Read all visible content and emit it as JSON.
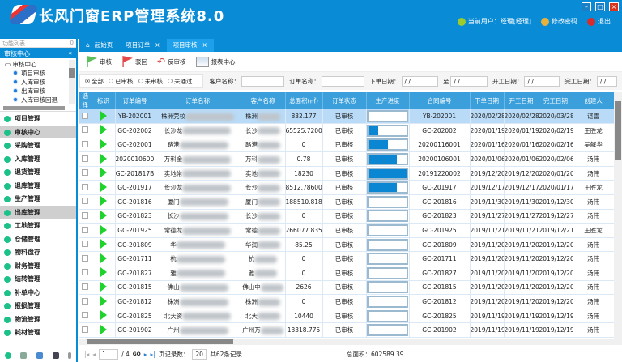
{
  "app": {
    "title": "长风门窗ERP管理系统8.0",
    "user": "当前用户：经理[经理]",
    "change_password": "修改密码",
    "logout": "退出"
  },
  "sidebar": {
    "header": "功能列表",
    "pin": "0",
    "section": "审核中心",
    "collapse": "«",
    "tree": {
      "root": "审核中心",
      "items": [
        "项目审核",
        "入库审核",
        "出库审核",
        "入库审核回退"
      ]
    },
    "menu": [
      {
        "label": "项目管理"
      },
      {
        "label": "审核中心",
        "selected": true
      },
      {
        "label": "采购管理"
      },
      {
        "label": "入库管理"
      },
      {
        "label": "退货管理"
      },
      {
        "label": "退库管理"
      },
      {
        "label": "生产管理"
      },
      {
        "label": "出库管理",
        "selected": true
      },
      {
        "label": "工地管理"
      },
      {
        "label": "仓储管理"
      },
      {
        "label": "物料盘存"
      },
      {
        "label": "财务管理"
      },
      {
        "label": "结转管理"
      },
      {
        "label": "补单中心"
      },
      {
        "label": "报损管理"
      },
      {
        "label": "物流管理"
      },
      {
        "label": "耗材管理"
      }
    ]
  },
  "tabs": [
    {
      "label": "起始页"
    },
    {
      "label": "项目订单",
      "close": "×"
    },
    {
      "label": "项目审核",
      "close": "×",
      "active": true
    }
  ],
  "toolbar": {
    "approve": "审核",
    "reject": "驳回",
    "unapprove": "反审核",
    "report": "报表中心"
  },
  "filters": {
    "radios": [
      {
        "label": "全部",
        "checked": true
      },
      {
        "label": "已审核"
      },
      {
        "label": "未审核"
      },
      {
        "label": "未通过"
      }
    ],
    "customer_label": "客户名称：",
    "order_label": "订单名称：",
    "order_date_label": "下单日期：",
    "to_label": "至",
    "start_label": "开工日期：",
    "finish_label": "完工日期：",
    "date_placeholder": " /  / "
  },
  "table": {
    "columns": [
      "选择",
      "标识",
      "订单编号",
      "订单名称",
      "客户名称",
      "总面积(㎡)",
      "订单状态",
      "生产进度",
      "合同编号",
      "下单日期",
      "开工日期",
      "完工日期",
      "创建人"
    ],
    "rows": [
      [
        "YB-202001",
        "株洲莞校",
        "株洲",
        "832.177",
        "已审核",
        0,
        "YB-202001",
        "2020/02/28",
        "2020/02/28",
        "2020/03/28",
        "谌雷"
      ],
      [
        "GC-202002",
        "长沙龙",
        "长沙",
        "65525.7200...",
        "已审核",
        25,
        "GC-202002",
        "2020/01/19",
        "2020/01/19",
        "2020/02/19",
        "王胜龙"
      ],
      [
        "GC-202001",
        "路港",
        "路港",
        "0",
        "已审核",
        50,
        "20200116001",
        "2020/01/16",
        "2020/01/16",
        "2020/02/16",
        "吴解华"
      ],
      [
        "20200106001",
        "万科金",
        "万科",
        "0.78",
        "已审核",
        75,
        "20200106001",
        "2020/01/06",
        "2020/01/06",
        "2020/02/06",
        "汤伟"
      ],
      [
        "GC-201817B",
        "实地常",
        "实地",
        "18230",
        "已审核",
        100,
        "20191220002",
        "2019/12/20",
        "2019/12/20",
        "2020/01/20",
        "汤伟"
      ],
      [
        "GC-201917",
        "长沙龙",
        "长沙",
        "8512.78600...",
        "已审核",
        75,
        "GC-201917",
        "2019/12/17",
        "2019/12/17",
        "2020/01/17",
        "王胜龙"
      ],
      [
        "GC-201816",
        "厦门",
        "厦门",
        "188510.818",
        "已审核",
        0,
        "GC-201816",
        "2019/11/30",
        "2019/11/30",
        "2019/12/30",
        "汤伟"
      ],
      [
        "GC-201823",
        "长沙",
        "长沙",
        "0",
        "已审核",
        0,
        "GC-201823",
        "2019/11/27",
        "2019/11/27",
        "2019/12/27",
        "汤伟"
      ],
      [
        "GC-201925",
        "常德龙",
        "常德",
        "266077.835...",
        "已审核",
        0,
        "GC-201925",
        "2019/11/21",
        "2019/11/21",
        "2019/12/21",
        "王胜龙"
      ],
      [
        "GC-201809",
        "华",
        "华润",
        "85.25",
        "已审核",
        0,
        "GC-201809",
        "2019/11/20",
        "2019/11/20",
        "2019/12/20",
        "汤伟"
      ],
      [
        "GC-201711",
        "杭",
        "杭",
        "0",
        "已审核",
        0,
        "GC-201711",
        "2019/11/20",
        "2019/11/20",
        "2019/12/20",
        "汤伟"
      ],
      [
        "GC-201827",
        "雅",
        "雅",
        "0",
        "已审核",
        0,
        "GC-201827",
        "2019/11/20",
        "2019/11/20",
        "2019/12/20",
        "汤伟"
      ],
      [
        "GC-201815",
        "佛山",
        "佛山中",
        "2626",
        "已审核",
        0,
        "GC-201815",
        "2019/11/20",
        "2019/11/20",
        "2019/12/20",
        "汤伟"
      ],
      [
        "GC-201812",
        "株洲",
        "株洲",
        "0",
        "已审核",
        0,
        "GC-201812",
        "2019/11/20",
        "2019/11/20",
        "2019/12/20",
        "汤伟"
      ],
      [
        "GC-201825",
        "北大资",
        "北大",
        "10440",
        "已审核",
        0,
        "GC-201825",
        "2019/11/19",
        "2019/11/19",
        "2019/12/19",
        "汤伟"
      ],
      [
        "GC-201902",
        "广州",
        "广州万",
        "13318.775",
        "已审核",
        0,
        "GC-201902",
        "2019/11/19",
        "2019/11/19",
        "2019/12/19",
        "汤伟"
      ]
    ]
  },
  "pager": {
    "page": "1",
    "total_pages": "/ 4",
    "go": "GO",
    "page_size_label": "页记录数：",
    "page_size": "20",
    "total_records": "共62条记录",
    "total_area": "总面积：602589.39"
  },
  "colors": {
    "primary": "#0a8bd6",
    "header": "#3a9fdb",
    "progress": "#0a86d2",
    "flag_green": "#1fd32c"
  }
}
